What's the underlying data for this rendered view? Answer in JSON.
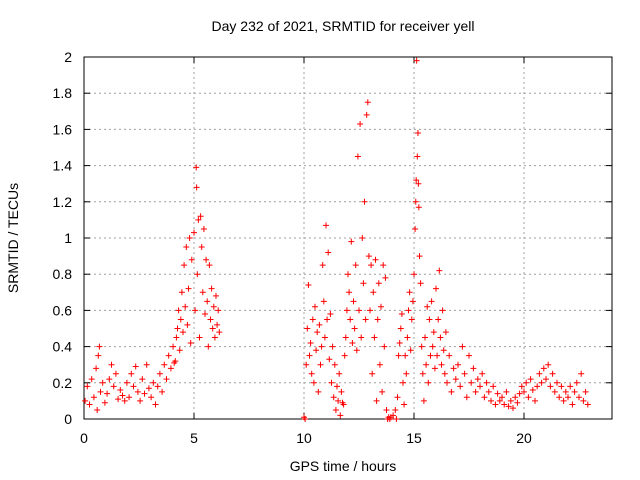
{
  "chart_data": {
    "type": "scatter",
    "title": "Day 232 of 2021, SRMTID for receiver yell",
    "xlabel": "GPS time / hours",
    "ylabel": "SRMTID / TECUs",
    "xlim": [
      0,
      24
    ],
    "ylim": [
      0,
      2
    ],
    "x_ticks": [
      0,
      5,
      10,
      15,
      20
    ],
    "x_tick_labels": [
      "0",
      "5",
      "10",
      "15",
      "20"
    ],
    "y_ticks": [
      0,
      0.2,
      0.4,
      0.6,
      0.8,
      1,
      1.2,
      1.4,
      1.6,
      1.8,
      2
    ],
    "y_tick_labels": [
      "0",
      "0.2",
      "0.4",
      "0.6",
      "0.8",
      "1",
      "1.2",
      "1.4",
      "1.6",
      "1.8",
      "2"
    ],
    "grid": true,
    "marker": "+",
    "marker_color": "#ff0000",
    "series": [
      {
        "name": "SRMTID",
        "points": [
          [
            0.05,
            0.1
          ],
          [
            0.15,
            0.18
          ],
          [
            0.25,
            0.08
          ],
          [
            0.35,
            0.22
          ],
          [
            0.45,
            0.12
          ],
          [
            0.55,
            0.28
          ],
          [
            0.6,
            0.05
          ],
          [
            0.65,
            0.35
          ],
          [
            0.7,
            0.4
          ],
          [
            0.75,
            0.15
          ],
          [
            0.85,
            0.2
          ],
          [
            0.95,
            0.09
          ],
          [
            1.05,
            0.14
          ],
          [
            1.15,
            0.22
          ],
          [
            1.25,
            0.3
          ],
          [
            1.35,
            0.18
          ],
          [
            1.45,
            0.25
          ],
          [
            1.55,
            0.11
          ],
          [
            1.65,
            0.16
          ],
          [
            1.75,
            0.13
          ],
          [
            1.85,
            0.1
          ],
          [
            1.95,
            0.2
          ],
          [
            2.05,
            0.12
          ],
          [
            2.15,
            0.25
          ],
          [
            2.25,
            0.18
          ],
          [
            2.35,
            0.29
          ],
          [
            2.45,
            0.15
          ],
          [
            2.55,
            0.1
          ],
          [
            2.65,
            0.22
          ],
          [
            2.75,
            0.14
          ],
          [
            2.85,
            0.3
          ],
          [
            2.95,
            0.17
          ],
          [
            3.05,
            0.12
          ],
          [
            3.15,
            0.2
          ],
          [
            3.25,
            0.08
          ],
          [
            3.35,
            0.18
          ],
          [
            3.45,
            0.25
          ],
          [
            3.55,
            0.15
          ],
          [
            3.65,
            0.3
          ],
          [
            3.75,
            0.22
          ],
          [
            3.85,
            0.35
          ],
          [
            3.95,
            0.28
          ],
          [
            4.05,
            0.4
          ],
          [
            4.1,
            0.31
          ],
          [
            4.15,
            0.32
          ],
          [
            4.2,
            0.45
          ],
          [
            4.25,
            0.5
          ],
          [
            4.3,
            0.6
          ],
          [
            4.35,
            0.38
          ],
          [
            4.4,
            0.55
          ],
          [
            4.45,
            0.7
          ],
          [
            4.5,
            0.48
          ],
          [
            4.55,
            0.85
          ],
          [
            4.6,
            0.62
          ],
          [
            4.65,
            0.95
          ],
          [
            4.7,
            0.52
          ],
          [
            4.75,
            0.72
          ],
          [
            4.8,
            1.0
          ],
          [
            4.85,
            0.42
          ],
          [
            4.9,
            0.88
          ],
          [
            5.0,
            1.03
          ],
          [
            5.05,
            0.6
          ],
          [
            5.1,
            1.39
          ],
          [
            5.12,
            1.28
          ],
          [
            5.15,
            0.8
          ],
          [
            5.2,
            1.1
          ],
          [
            5.25,
            0.45
          ],
          [
            5.3,
            1.12
          ],
          [
            5.35,
            0.95
          ],
          [
            5.4,
            0.7
          ],
          [
            5.45,
            1.05
          ],
          [
            5.5,
            0.58
          ],
          [
            5.55,
            0.88
          ],
          [
            5.6,
            0.65
          ],
          [
            5.65,
            0.4
          ],
          [
            5.7,
            0.85
          ],
          [
            5.75,
            0.55
          ],
          [
            5.8,
            0.72
          ],
          [
            5.85,
            0.5
          ],
          [
            5.9,
            0.62
          ],
          [
            5.95,
            0.45
          ],
          [
            6.0,
            0.68
          ],
          [
            6.05,
            0.52
          ],
          [
            6.1,
            0.6
          ],
          [
            6.15,
            0.48
          ],
          [
            10.0,
            0.01
          ],
          [
            10.05,
            0.0
          ],
          [
            10.1,
            0.3
          ],
          [
            10.15,
            0.5
          ],
          [
            10.2,
            0.74
          ],
          [
            10.25,
            0.35
          ],
          [
            10.3,
            0.42
          ],
          [
            10.35,
            0.25
          ],
          [
            10.4,
            0.55
          ],
          [
            10.45,
            0.2
          ],
          [
            10.5,
            0.62
          ],
          [
            10.55,
            0.38
          ],
          [
            10.6,
            0.48
          ],
          [
            10.65,
            0.15
          ],
          [
            10.7,
            0.52
          ],
          [
            10.75,
            0.3
          ],
          [
            10.8,
            0.4
          ],
          [
            10.85,
            0.85
          ],
          [
            10.9,
            0.65
          ],
          [
            10.95,
            0.45
          ],
          [
            11.0,
            1.07
          ],
          [
            11.05,
            0.55
          ],
          [
            11.1,
            0.92
          ],
          [
            11.15,
            0.33
          ],
          [
            11.2,
            0.58
          ],
          [
            11.25,
            0.2
          ],
          [
            11.3,
            0.4
          ],
          [
            11.35,
            0.12
          ],
          [
            11.4,
            0.3
          ],
          [
            11.45,
            0.05
          ],
          [
            11.5,
            0.18
          ],
          [
            11.55,
            0.1
          ],
          [
            11.6,
            0.25
          ],
          [
            11.65,
            0.02
          ],
          [
            11.7,
            0.15
          ],
          [
            11.75,
            0.09
          ],
          [
            11.8,
            0.08
          ],
          [
            11.85,
            0.35
          ],
          [
            11.9,
            0.45
          ],
          [
            11.95,
            0.6
          ],
          [
            12.0,
            0.8
          ],
          [
            12.05,
            0.7
          ],
          [
            12.1,
            0.55
          ],
          [
            12.15,
            0.98
          ],
          [
            12.2,
            0.42
          ],
          [
            12.25,
            0.65
          ],
          [
            12.3,
            0.5
          ],
          [
            12.35,
            0.85
          ],
          [
            12.4,
            0.38
          ],
          [
            12.45,
            1.45
          ],
          [
            12.5,
            0.6
          ],
          [
            12.55,
            1.63
          ],
          [
            12.6,
            0.45
          ],
          [
            12.65,
            1.0
          ],
          [
            12.7,
            0.75
          ],
          [
            12.75,
            1.2
          ],
          [
            12.8,
            0.55
          ],
          [
            12.85,
            1.68
          ],
          [
            12.9,
            1.75
          ],
          [
            12.95,
            0.9
          ],
          [
            13.0,
            0.6
          ],
          [
            13.05,
            0.85
          ],
          [
            13.1,
            0.25
          ],
          [
            13.15,
            0.7
          ],
          [
            13.2,
            0.45
          ],
          [
            13.25,
            0.88
          ],
          [
            13.3,
            0.1
          ],
          [
            13.35,
            0.55
          ],
          [
            13.4,
            0.75
          ],
          [
            13.45,
            0.3
          ],
          [
            13.5,
            0.62
          ],
          [
            13.55,
            0.15
          ],
          [
            13.6,
            0.85
          ],
          [
            13.65,
            0.4
          ],
          [
            13.7,
            0.78
          ],
          [
            13.75,
            0.05
          ],
          [
            13.8,
            0.0
          ],
          [
            13.85,
            0.01
          ],
          [
            13.9,
            0.0
          ],
          [
            13.95,
            0.01
          ],
          [
            14.05,
            0.02
          ],
          [
            14.15,
            0.05
          ],
          [
            14.2,
            0.0
          ],
          [
            14.25,
            0.12
          ],
          [
            14.3,
            0.35
          ],
          [
            14.35,
            0.42
          ],
          [
            14.4,
            0.5
          ],
          [
            14.45,
            0.58
          ],
          [
            14.5,
            0.2
          ],
          [
            14.55,
            0.08
          ],
          [
            14.6,
            0.35
          ],
          [
            14.65,
            0.25
          ],
          [
            14.7,
            0.45
          ],
          [
            14.75,
            0.6
          ],
          [
            14.8,
            0.7
          ],
          [
            14.85,
            0.38
          ],
          [
            14.9,
            0.55
          ],
          [
            14.95,
            0.65
          ],
          [
            15.0,
            0.8
          ],
          [
            15.05,
            1.05
          ],
          [
            15.08,
            1.2
          ],
          [
            15.1,
            1.32
          ],
          [
            15.12,
            1.98
          ],
          [
            15.15,
            1.45
          ],
          [
            15.18,
            1.58
          ],
          [
            15.2,
            1.3
          ],
          [
            15.22,
            1.17
          ],
          [
            15.25,
            0.9
          ],
          [
            15.3,
            0.75
          ],
          [
            15.35,
            0.4
          ],
          [
            15.4,
            0.25
          ],
          [
            15.45,
            0.1
          ],
          [
            15.5,
            0.45
          ],
          [
            15.55,
            0.3
          ],
          [
            15.6,
            0.62
          ],
          [
            15.65,
            0.2
          ],
          [
            15.7,
            0.55
          ],
          [
            15.75,
            0.35
          ],
          [
            15.8,
            0.65
          ],
          [
            15.85,
            0.4
          ],
          [
            15.9,
            0.48
          ],
          [
            15.95,
            0.28
          ],
          [
            16.0,
            0.72
          ],
          [
            16.05,
            0.35
          ],
          [
            16.1,
            0.55
          ],
          [
            16.15,
            0.82
          ],
          [
            16.2,
            0.45
          ],
          [
            16.25,
            0.3
          ],
          [
            16.3,
            0.6
          ],
          [
            16.35,
            0.38
          ],
          [
            16.4,
            0.25
          ],
          [
            16.45,
            0.48
          ],
          [
            16.5,
            0.2
          ],
          [
            16.6,
            0.35
          ],
          [
            16.7,
            0.15
          ],
          [
            16.8,
            0.28
          ],
          [
            16.9,
            0.22
          ],
          [
            17.0,
            0.3
          ],
          [
            17.1,
            0.18
          ],
          [
            17.2,
            0.4
          ],
          [
            17.3,
            0.25
          ],
          [
            17.4,
            0.12
          ],
          [
            17.5,
            0.35
          ],
          [
            17.6,
            0.2
          ],
          [
            17.7,
            0.28
          ],
          [
            17.8,
            0.15
          ],
          [
            17.9,
            0.22
          ],
          [
            18.0,
            0.18
          ],
          [
            18.1,
            0.25
          ],
          [
            18.2,
            0.12
          ],
          [
            18.3,
            0.2
          ],
          [
            18.4,
            0.15
          ],
          [
            18.5,
            0.1
          ],
          [
            18.6,
            0.18
          ],
          [
            18.7,
            0.08
          ],
          [
            18.8,
            0.14
          ],
          [
            18.9,
            0.1
          ],
          [
            19.0,
            0.12
          ],
          [
            19.1,
            0.08
          ],
          [
            19.2,
            0.15
          ],
          [
            19.3,
            0.07
          ],
          [
            19.4,
            0.1
          ],
          [
            19.5,
            0.06
          ],
          [
            19.6,
            0.12
          ],
          [
            19.7,
            0.09
          ],
          [
            19.8,
            0.14
          ],
          [
            19.9,
            0.18
          ],
          [
            20.0,
            0.15
          ],
          [
            20.1,
            0.2
          ],
          [
            20.2,
            0.12
          ],
          [
            20.3,
            0.22
          ],
          [
            20.4,
            0.16
          ],
          [
            20.5,
            0.1
          ],
          [
            20.6,
            0.18
          ],
          [
            20.7,
            0.25
          ],
          [
            20.8,
            0.2
          ],
          [
            20.9,
            0.28
          ],
          [
            21.0,
            0.22
          ],
          [
            21.1,
            0.3
          ],
          [
            21.2,
            0.18
          ],
          [
            21.3,
            0.25
          ],
          [
            21.4,
            0.15
          ],
          [
            21.5,
            0.2
          ],
          [
            21.6,
            0.12
          ],
          [
            21.7,
            0.18
          ],
          [
            21.8,
            0.1
          ],
          [
            21.9,
            0.15
          ],
          [
            22.0,
            0.12
          ],
          [
            22.1,
            0.18
          ],
          [
            22.2,
            0.08
          ],
          [
            22.3,
            0.15
          ],
          [
            22.4,
            0.2
          ],
          [
            22.5,
            0.12
          ],
          [
            22.6,
            0.25
          ],
          [
            22.7,
            0.1
          ],
          [
            22.8,
            0.15
          ],
          [
            22.9,
            0.08
          ]
        ]
      }
    ]
  }
}
